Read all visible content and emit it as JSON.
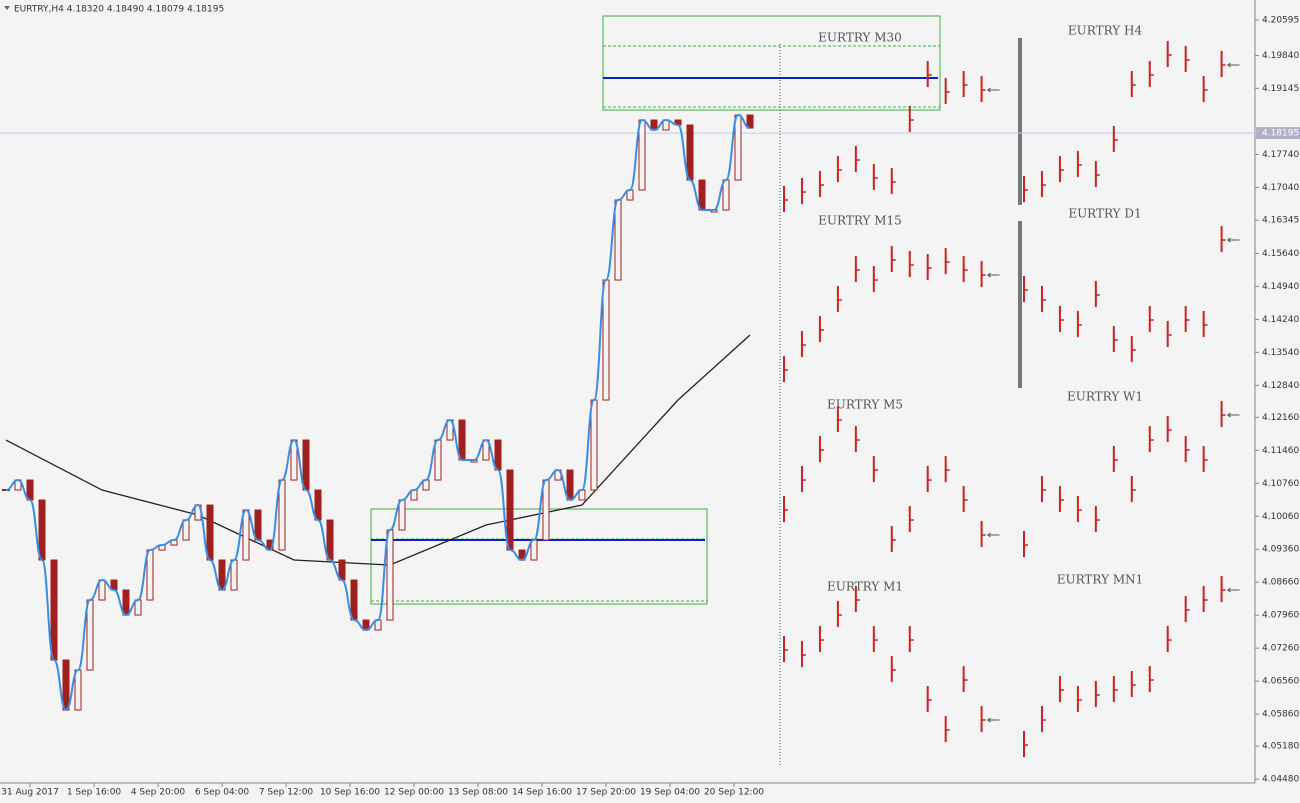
{
  "chart_data": [
    {
      "type": "candlestick",
      "header": "EURTRY,H4  4.18320 4.18490 4.18079 4.18195",
      "ylim": [
        4.04397,
        4.2102
      ],
      "yticks": [
        4.20595,
        {
          "value": 4.1984,
          "label": "4.19840"
        },
        4.19145,
        {
          "value": 4.1774,
          "label": "4.17740"
        },
        {
          "value": 4.1704,
          "label": "4.17040"
        },
        4.16345,
        {
          "value": 4.1564,
          "label": "4.15640"
        },
        {
          "value": 4.1494,
          "label": "4.14940"
        },
        {
          "value": 4.1424,
          "label": "4.14240"
        },
        {
          "value": 4.1354,
          "label": "4.13540"
        },
        {
          "value": 4.1284,
          "label": "4.12840"
        },
        {
          "value": 4.1216,
          "label": "4.12160"
        },
        {
          "value": 4.1146,
          "label": "4.11460"
        },
        {
          "value": 4.1076,
          "label": "4.10760"
        },
        {
          "value": 4.1006,
          "label": "4.10060"
        },
        {
          "value": 4.0936,
          "label": "4.09360"
        },
        {
          "value": 4.0866,
          "label": "4.08660"
        },
        {
          "value": 4.0796,
          "label": "4.07960"
        },
        {
          "value": 4.0726,
          "label": "4.07260"
        },
        {
          "value": 4.0656,
          "label": "4.06560"
        },
        {
          "value": 4.0586,
          "label": "4.05860"
        },
        {
          "value": 4.0518,
          "label": "4.05180"
        },
        {
          "value": 4.0448,
          "label": "4.04480"
        }
      ],
      "current_price": 4.18195,
      "xlabels": [
        "31 Aug 2017",
        "1 Sep 16:00",
        "4 Sep 20:00",
        "6 Sep 04:00",
        "7 Sep 12:00",
        "10 Sep 16:00",
        "12 Sep 00:00",
        "13 Sep 08:00",
        "14 Sep 16:00",
        "17 Sep 20:00",
        "19 Sep 04:00",
        "20 Sep 12:00"
      ],
      "values": [
        4.10617,
        4.10829,
        4.10405,
        4.09131,
        4.07008,
        4.05946,
        4.06795,
        4.08282,
        4.08706,
        4.08494,
        4.07963,
        4.08282,
        4.09343,
        4.09449,
        4.09555,
        4.0998,
        4.10298,
        4.09131,
        4.08494,
        4.09131,
        4.10192,
        4.09555,
        4.09343,
        4.10829,
        4.11678,
        4.10617,
        4.0998,
        4.09131,
        4.08706,
        4.07857,
        4.07645,
        4.07857,
        4.09768,
        4.10405,
        4.10617,
        4.10829,
        4.11678,
        4.12103,
        4.11254,
        4.11254,
        4.11678,
        4.11041,
        4.09343,
        4.09131,
        4.09555,
        4.10829,
        4.11041,
        4.10405,
        4.10617,
        4.12528,
        4.15075,
        4.16774,
        4.16986,
        4.18472,
        4.1826,
        4.18472,
        4.18366,
        4.17198,
        4.16561,
        4.16561,
        4.17198,
        4.18578,
        4.18302
      ],
      "ma": {
        "x": [
          0,
          8,
          16,
          24,
          32,
          40,
          48,
          56,
          62
        ],
        "values": [
          4.11678,
          4.10617,
          4.10086,
          4.09131,
          4.09025,
          4.09874,
          4.10298,
          4.12528,
          4.13908
        ]
      },
      "zones": [
        {
          "top": 4.2068,
          "bottom": 4.18684,
          "level": 4.19364
        },
        {
          "top": 4.10214,
          "bottom": 4.08197,
          "level": 4.09555
        }
      ]
    },
    {
      "type": "ohlc",
      "title": "EURTRY M30",
      "values": [
        4.16774,
        4.16943,
        4.17092,
        4.1741,
        4.17623,
        4.17241,
        4.17156,
        4.18472,
        4.19427,
        4.19066,
        4.19215,
        4.19109
      ]
    },
    {
      "type": "ohlc",
      "title": "EURTRY H4",
      "values": [
        4.16986,
        4.17092,
        4.1741,
        4.17517,
        4.17304,
        4.18047,
        4.19215,
        4.19427,
        4.19852,
        4.19746,
        4.19109,
        4.1964
      ]
    },
    {
      "type": "ohlc",
      "title": "EURTRY M15",
      "values": [
        4.13164,
        4.13695,
        4.14014,
        4.14651,
        4.15287,
        4.15075,
        4.155,
        4.15394,
        4.1533,
        4.15457,
        4.15287,
        4.15181
      ]
    },
    {
      "type": "ohlc",
      "title": "EURTRY D1",
      "values": [
        4.14863,
        4.14651,
        4.14226,
        4.1412,
        4.14757,
        4.13801,
        4.13589,
        4.14226,
        4.13908,
        4.14226,
        4.1412,
        4.15924
      ]
    },
    {
      "type": "ohlc",
      "title": "EURTRY M5",
      "values": [
        4.10192,
        4.10829,
        4.11466,
        4.12103,
        4.11678,
        4.11041,
        4.09555,
        4.0998,
        4.10829,
        4.11041,
        4.10405,
        4.09662
      ]
    },
    {
      "type": "ohlc",
      "title": "EURTRY W1",
      "values": [
        4.09449,
        4.10617,
        4.10405,
        4.10192,
        4.0998,
        4.11254,
        4.10617,
        4.11678,
        4.11891,
        4.11466,
        4.11254,
        4.12209
      ]
    },
    {
      "type": "ohlc",
      "title": "EURTRY M1",
      "values": [
        4.0722,
        4.07114,
        4.07432,
        4.07963,
        4.08282,
        4.07432,
        4.06795,
        4.07432,
        4.06159,
        4.05522,
        4.06583,
        4.05734
      ]
    },
    {
      "type": "ohlc",
      "title": "EURTRY MN1",
      "values": [
        4.05203,
        4.05734,
        4.06371,
        4.06159,
        4.06265,
        4.06371,
        4.06477,
        4.06583,
        4.07432,
        4.08069,
        4.08282,
        4.08494
      ]
    }
  ]
}
